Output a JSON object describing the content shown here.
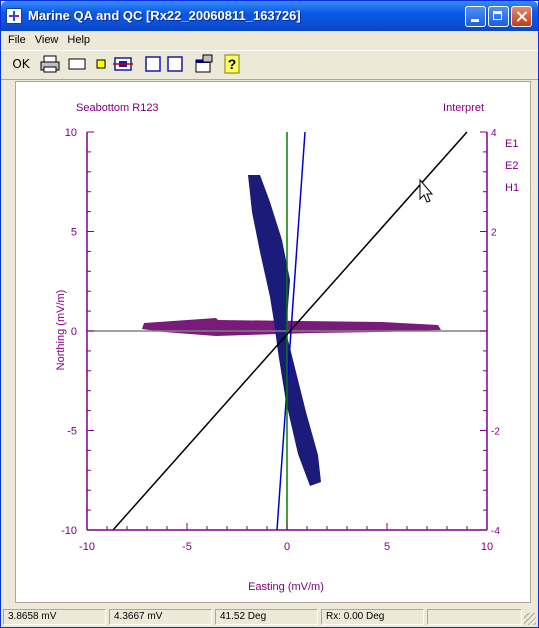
{
  "window": {
    "title": "Marine QA and QC [Rx22_20060811_163726]"
  },
  "menu": [
    "File",
    "View",
    "Help"
  ],
  "toolbar": {
    "ok_label": "OK"
  },
  "chart_data": {
    "type": "scatter",
    "title_left": "Seabottom R123",
    "title_right": "Interpret",
    "xlabel": "Easting (mV/m)",
    "ylabel": "Northing (mV/m)",
    "xlim": [
      -10,
      10
    ],
    "ylim": [
      -10,
      10
    ],
    "x_ticks": [
      -10,
      -5,
      0,
      5,
      10
    ],
    "y_ticks": [
      10,
      5,
      0,
      -5,
      -10
    ],
    "right_ticks": [
      "4",
      "2",
      "-2",
      "-4"
    ],
    "legend": [
      "E1",
      "E2",
      "H1"
    ],
    "grid": false,
    "colors": {
      "axes": "#800080",
      "E1": "#0000cc",
      "E2": "#008000",
      "H1": "#000000",
      "ellipse_blue": "#1b1b7a",
      "ellipse_purple": "#7a1a7a",
      "reference": "#808080"
    },
    "series": [
      {
        "name": "E1",
        "x": [
          -0.5,
          0.9
        ],
        "y": [
          -10,
          10
        ]
      },
      {
        "name": "E2",
        "x": [
          0,
          0
        ],
        "y": [
          -10,
          10
        ]
      },
      {
        "name": "H1",
        "x": [
          -8.7,
          9.0
        ],
        "y": [
          -10,
          10
        ]
      }
    ]
  },
  "status": {
    "cell1": "3.8658 mV",
    "cell2": "4.3667 mV",
    "cell3": "41.52 Deg",
    "cell4": "Rx:   0.00 Deg"
  }
}
